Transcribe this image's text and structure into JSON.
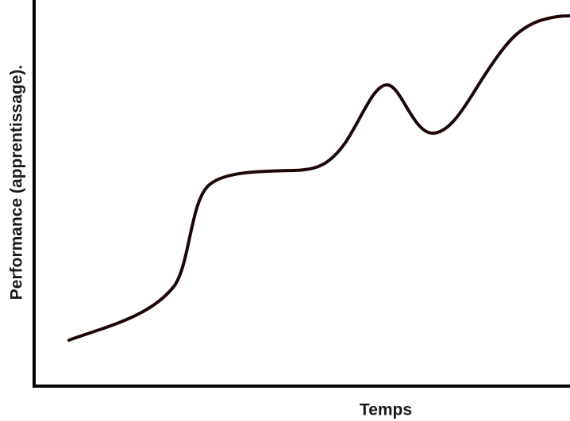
{
  "axes": {
    "y_label": "Performance (apprentissage).",
    "x_label": "Temps"
  }
}
